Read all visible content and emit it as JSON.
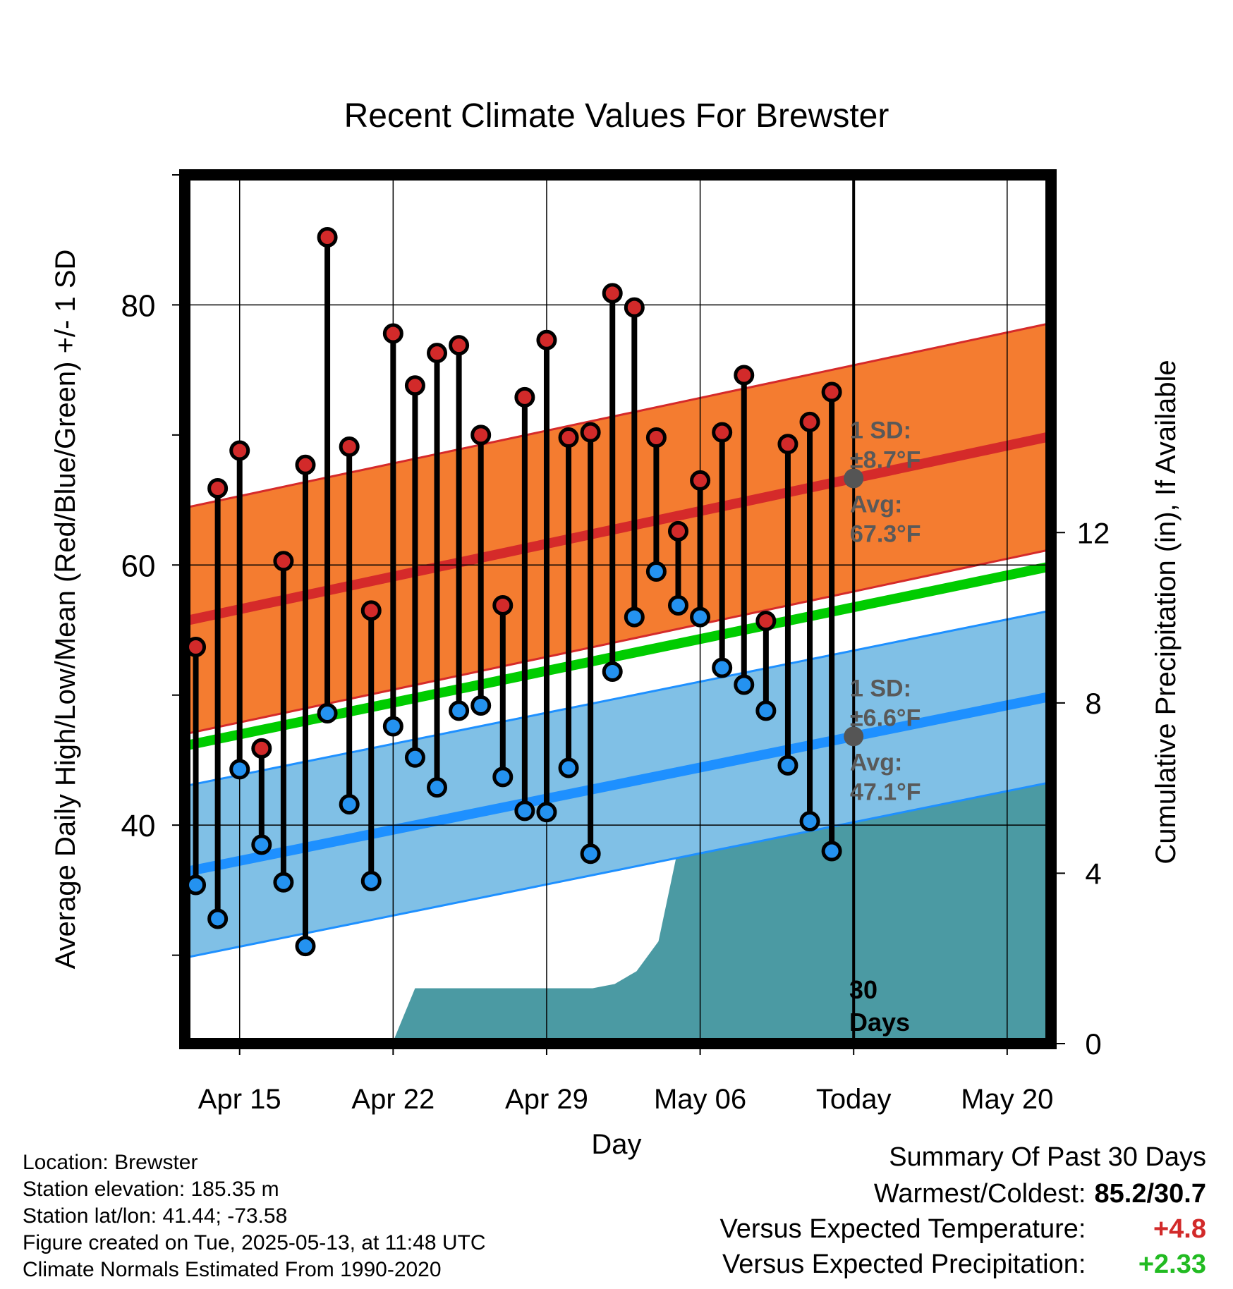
{
  "chart_data": {
    "type": "line",
    "title": "Recent Climate Values For Brewster",
    "xlabel": "Day",
    "ylabel": "Average Daily High/Low/Mean (Red/Blue/Green) +/- 1 SD",
    "y2label": "Cumulative Precipitation (in), If Available",
    "x_ticks": [
      {
        "day": 3,
        "label": "Apr 15"
      },
      {
        "day": 10,
        "label": "Apr 22"
      },
      {
        "day": 17,
        "label": "Apr 29"
      },
      {
        "day": 24,
        "label": "May 06"
      },
      {
        "day": 31,
        "label": "Today"
      },
      {
        "day": 38,
        "label": "May 20"
      }
    ],
    "xlim": [
      0.5,
      40
    ],
    "ylim": [
      23.2,
      90
    ],
    "y_ticks": [
      40,
      60,
      80
    ],
    "y2lim": [
      0,
      20.4
    ],
    "y2_ticks": [
      0,
      4,
      8,
      12
    ],
    "grid": true,
    "today_day": 31,
    "today_label": "30\nDays",
    "daily_high": [
      53.7,
      65.9,
      68.8,
      45.9,
      60.3,
      67.7,
      85.2,
      69.1,
      56.5,
      77.8,
      73.8,
      76.3,
      76.9,
      70.0,
      56.9,
      72.9,
      77.3,
      69.8,
      70.2,
      80.9,
      79.8,
      69.8,
      62.6,
      66.5,
      70.2,
      74.6,
      55.7,
      69.3,
      71.0,
      73.3
    ],
    "daily_low": [
      35.4,
      32.8,
      44.3,
      38.5,
      35.6,
      30.7,
      48.6,
      41.6,
      35.7,
      47.6,
      45.2,
      42.9,
      48.8,
      49.2,
      43.7,
      41.1,
      41.0,
      44.4,
      37.8,
      51.8,
      56.0,
      59.5,
      56.9,
      56.0,
      52.1,
      50.8,
      48.8,
      44.6,
      40.3,
      38.0
    ],
    "high_is_warm": [
      false,
      false,
      false,
      false,
      false,
      false,
      false,
      false,
      false,
      false,
      false,
      false,
      false,
      false,
      false,
      false,
      false,
      false,
      false,
      false,
      false,
      false,
      false,
      false,
      false,
      false,
      false,
      false,
      false,
      false
    ],
    "low_is_warm": [
      false,
      false,
      false,
      false,
      false,
      false,
      false,
      false,
      false,
      false,
      false,
      false,
      false,
      false,
      false,
      false,
      false,
      false,
      false,
      false,
      false,
      false,
      true,
      true,
      true,
      false,
      false,
      false,
      false,
      false
    ],
    "normal_high": {
      "start": 55.7,
      "end": 69.9,
      "sd": 8.7
    },
    "normal_low": {
      "start": 36.4,
      "end": 49.9,
      "sd": 6.6
    },
    "normal_mean": {
      "start": 46.1,
      "end": 59.9
    },
    "cum_precip": [
      [
        9.96,
        0
      ],
      [
        11,
        1.3
      ],
      [
        19.1,
        1.3
      ],
      [
        20.1,
        1.4
      ],
      [
        21.1,
        1.7
      ],
      [
        22.1,
        2.4
      ],
      [
        23.0,
        4.6
      ],
      [
        24.1,
        4.7
      ],
      [
        25.1,
        4.7
      ],
      [
        26.1,
        5.0
      ],
      [
        27.1,
        6.5
      ],
      [
        40,
        6.5
      ]
    ],
    "annotations": {
      "high_sd": [
        "1 SD:",
        "±8.7°F"
      ],
      "high_avg": [
        "Avg:",
        "67.3°F"
      ],
      "low_sd": [
        "1 SD:",
        "±6.6°F"
      ],
      "low_avg": [
        "Avg:",
        "47.1°F"
      ]
    },
    "colors": {
      "high_band": "#f47c30",
      "high_line": "#d52a2a",
      "low_band": "#80c0e6",
      "low_line": "#1e90ff",
      "mean_line": "#00cc00",
      "precip": "#4b9aa3",
      "high_dot": "#d22a2a",
      "low_dot": "#2492f0",
      "low_dot_warm": "#2492f0",
      "annotation": "#595959"
    }
  },
  "footer": {
    "location": "Location: Brewster",
    "elevation": "Station elevation: 185.35 m",
    "latlon": "Station lat/lon: 41.44; -73.58",
    "created": "Figure created on Tue, 2025-05-13, at 11:48 UTC",
    "normals": "Climate Normals Estimated From 1990-2020"
  },
  "summary": {
    "title": "Summary Of Past 30 Days",
    "warmest_label": "Warmest/Coldest:",
    "warmest_value": "85.2/30.7",
    "temp_label": "Versus Expected Temperature:",
    "temp_value": "+4.8",
    "temp_color": "#d22a2a",
    "precip_label": "Versus Expected Precipitation:",
    "precip_value": "+2.33",
    "precip_color": "#22bb22"
  }
}
